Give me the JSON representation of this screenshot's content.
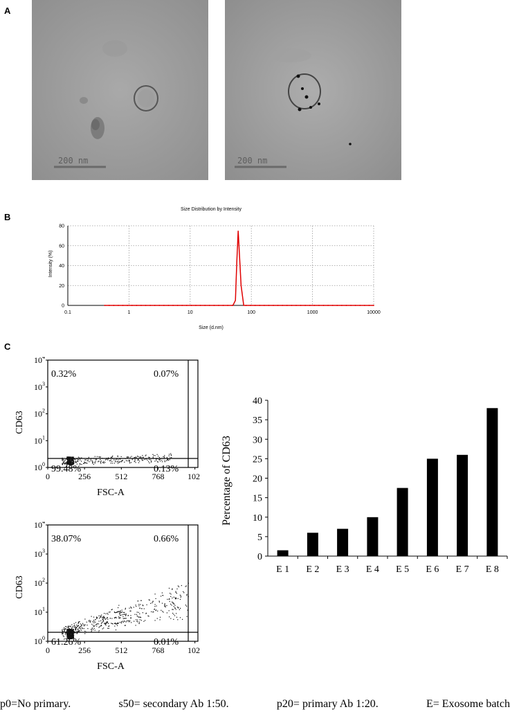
{
  "panels": {
    "a_label": "A",
    "b_label": "B",
    "c_label": "C"
  },
  "tem": {
    "left": {
      "scalebar_label": "200 nm"
    },
    "right": {
      "scalebar_label": "200 nm"
    }
  },
  "dls": {
    "chart_data": {
      "type": "line",
      "title": "Size Distribution by Intensity",
      "xlabel": "Size (d.nm)",
      "ylabel": "Intensity (%)",
      "x_scale": "log",
      "xlim": [
        0.1,
        10000
      ],
      "ylim": [
        0,
        80
      ],
      "x_ticks": [
        "0.1",
        "1",
        "10",
        "100",
        "1000",
        "10000"
      ],
      "y_ticks": [
        "0",
        "20",
        "40",
        "60",
        "80"
      ],
      "grid": true,
      "series": [
        {
          "color": "#e00000",
          "x": [
            0.4,
            1,
            10,
            50,
            55,
            58,
            61,
            64,
            68,
            75,
            10000
          ],
          "y": [
            0,
            0,
            0,
            0,
            5,
            45,
            75,
            50,
            20,
            0,
            0
          ]
        }
      ]
    }
  },
  "flow": {
    "top": {
      "ylabel": "CD63",
      "xlabel": "FSC-A",
      "x_ticks": [
        "0",
        "256",
        "512",
        "768",
        "102"
      ],
      "quadrants": {
        "ul": "0.32%",
        "ur": "0.07%",
        "ll": "99.48%",
        "lr": "0.13%"
      }
    },
    "bottom": {
      "ylabel": "CD63",
      "xlabel": "FSC-A",
      "x_ticks": [
        "0",
        "256",
        "512",
        "768",
        "102"
      ],
      "quadrants": {
        "ul": "38.07%",
        "ur": "0.66%",
        "ll": "61.26%",
        "lr": "0.01%"
      }
    }
  },
  "bar": {
    "chart_data": {
      "type": "bar",
      "ylabel": "Percentage of CD63",
      "categories": [
        "E 1",
        "E 2",
        "E 3",
        "E 4",
        "E 5",
        "E 6",
        "E 7",
        "E 8"
      ],
      "values": [
        1.5,
        6,
        7,
        10,
        17.5,
        25,
        26,
        38
      ],
      "ylim": [
        0,
        40
      ],
      "y_ticks": [
        "0",
        "5",
        "10",
        "15",
        "20",
        "25",
        "30",
        "35",
        "40"
      ],
      "bar_color": "#000000"
    }
  },
  "caption": {
    "p0": "p0=No primary.",
    "s50": "s50= secondary Ab 1:50.",
    "p20": "p20= primary Ab 1:20.",
    "e": "E= Exosome batch"
  }
}
